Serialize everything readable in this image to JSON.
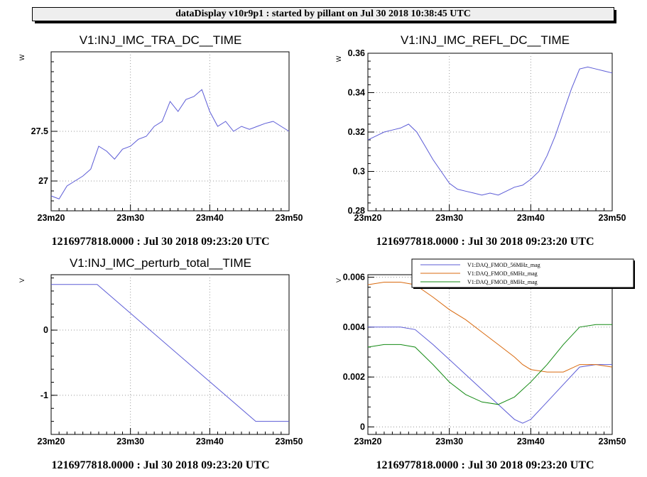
{
  "window": {
    "title": "dataDisplay v10r9p1 : started by pillant on Jul 30 2018 10:38:45 UTC"
  },
  "colors": {
    "blue": "#5b5bd6",
    "orange": "#d96a0f",
    "green": "#138a13",
    "grid": "#999999"
  },
  "chart_data": [
    {
      "type": "line",
      "title": "V1:INJ_IMC_TRA_DC__TIME",
      "ylabel": "W",
      "timestamp": "1216977818.0000 : Jul 30 2018 09:23:20 UTC",
      "x_ticks": [
        "23m20",
        "23m30",
        "23m40",
        "23m50"
      ],
      "xlim": [
        0,
        30
      ],
      "ylim": [
        26.7,
        28.3
      ],
      "y_ticks": [
        {
          "v": 27,
          "label": "27"
        },
        {
          "v": 27.5,
          "label": "27.5"
        }
      ],
      "grid": true,
      "series": [
        {
          "color": "#5b5bd6",
          "x": [
            0,
            1,
            2,
            3,
            4,
            5,
            6,
            7,
            8,
            9,
            10,
            11,
            12,
            13,
            14,
            15,
            16,
            17,
            18,
            19,
            20,
            21,
            22,
            23,
            24,
            25,
            26,
            27,
            28,
            29,
            30
          ],
          "y": [
            26.85,
            26.82,
            26.95,
            27.0,
            27.05,
            27.12,
            27.35,
            27.3,
            27.22,
            27.32,
            27.35,
            27.42,
            27.45,
            27.55,
            27.6,
            27.8,
            27.7,
            27.82,
            27.85,
            27.92,
            27.7,
            27.55,
            27.6,
            27.5,
            27.55,
            27.52,
            27.55,
            27.58,
            27.6,
            27.55,
            27.5
          ]
        }
      ]
    },
    {
      "type": "line",
      "title": "V1:INJ_IMC_REFL_DC__TIME",
      "ylabel": "W",
      "timestamp": "1216977818.0000 : Jul 30 2018 09:23:20 UTC",
      "x_ticks": [
        "23m20",
        "23m30",
        "23m40",
        "23m50"
      ],
      "xlim": [
        0,
        30
      ],
      "ylim": [
        0.28,
        0.36
      ],
      "y_ticks": [
        {
          "v": 0.28,
          "label": "0.28"
        },
        {
          "v": 0.3,
          "label": "0.3"
        },
        {
          "v": 0.32,
          "label": "0.32"
        },
        {
          "v": 0.34,
          "label": "0.34"
        },
        {
          "v": 0.36,
          "label": "0.36"
        }
      ],
      "grid": true,
      "series": [
        {
          "color": "#5b5bd6",
          "x": [
            0,
            1,
            2,
            3,
            4,
            5,
            6,
            7,
            8,
            9,
            10,
            11,
            12,
            13,
            14,
            15,
            16,
            17,
            18,
            19,
            20,
            21,
            22,
            23,
            24,
            25,
            26,
            27,
            28,
            29,
            30
          ],
          "y": [
            0.316,
            0.318,
            0.32,
            0.321,
            0.322,
            0.324,
            0.32,
            0.313,
            0.306,
            0.3,
            0.294,
            0.291,
            0.29,
            0.289,
            0.288,
            0.289,
            0.288,
            0.29,
            0.292,
            0.293,
            0.296,
            0.3,
            0.308,
            0.318,
            0.33,
            0.342,
            0.352,
            0.353,
            0.352,
            0.351,
            0.35
          ]
        }
      ]
    },
    {
      "type": "line",
      "title": "V1:INJ_IMC_perturb_total__TIME",
      "ylabel": "V",
      "timestamp": "1216977818.0000 : Jul 30 2018 09:23:20 UTC",
      "x_ticks": [
        "23m20",
        "23m30",
        "23m40",
        "23m50"
      ],
      "xlim": [
        0,
        30
      ],
      "ylim": [
        -1.6,
        0.85
      ],
      "y_ticks": [
        {
          "v": -1,
          "label": "-1"
        },
        {
          "v": 0,
          "label": "0"
        }
      ],
      "grid": true,
      "series": [
        {
          "color": "#5b5bd6",
          "x": [
            0,
            5.8,
            25.8,
            30
          ],
          "y": [
            0.7,
            0.7,
            -1.4,
            -1.4
          ]
        }
      ]
    },
    {
      "type": "line",
      "title": "",
      "ylabel": "V",
      "timestamp": "1216977818.0000 : Jul 30 2018 09:23:20 UTC",
      "x_ticks": [
        "23m20",
        "23m30",
        "23m40",
        "23m50"
      ],
      "xlim": [
        0,
        30
      ],
      "ylim": [
        -0.0003,
        0.0061
      ],
      "y_ticks": [
        {
          "v": 0,
          "label": "0"
        },
        {
          "v": 0.002,
          "label": "0.002"
        },
        {
          "v": 0.004,
          "label": "0.004"
        },
        {
          "v": 0.006,
          "label": "0.006"
        }
      ],
      "grid": true,
      "legend": "top-right",
      "series": [
        {
          "name": "V1:DAQ_FMOD_56MHz_mag",
          "color": "#5b5bd6",
          "x": [
            0,
            2,
            4,
            5.8,
            8,
            10,
            12,
            14,
            16,
            18,
            19,
            20,
            22,
            24,
            26,
            28,
            30
          ],
          "y": [
            0.004,
            0.004,
            0.004,
            0.0039,
            0.0033,
            0.0027,
            0.0021,
            0.0015,
            0.0009,
            0.0003,
            0.00015,
            0.0003,
            0.001,
            0.0017,
            0.0024,
            0.0025,
            0.0025
          ]
        },
        {
          "name": "V1:DAQ_FMOD_6MHz_mag",
          "color": "#d96a0f",
          "x": [
            0,
            2,
            4,
            5.8,
            8,
            10,
            12,
            14,
            16,
            18,
            19,
            20,
            22,
            24,
            26,
            28,
            30
          ],
          "y": [
            0.0057,
            0.0058,
            0.0058,
            0.0057,
            0.0052,
            0.0047,
            0.0043,
            0.0038,
            0.0033,
            0.0028,
            0.0025,
            0.0023,
            0.0022,
            0.0022,
            0.0025,
            0.0025,
            0.0024
          ]
        },
        {
          "name": "V1:DAQ_FMOD_8MHz_mag",
          "color": "#138a13",
          "x": [
            0,
            2,
            4,
            5.8,
            8,
            10,
            12,
            14,
            16,
            18,
            20,
            22,
            24,
            26,
            28,
            30
          ],
          "y": [
            0.0032,
            0.0033,
            0.0033,
            0.0032,
            0.0025,
            0.0018,
            0.0013,
            0.001,
            0.0009,
            0.0012,
            0.0018,
            0.0025,
            0.0033,
            0.004,
            0.0041,
            0.0041
          ]
        }
      ]
    }
  ]
}
